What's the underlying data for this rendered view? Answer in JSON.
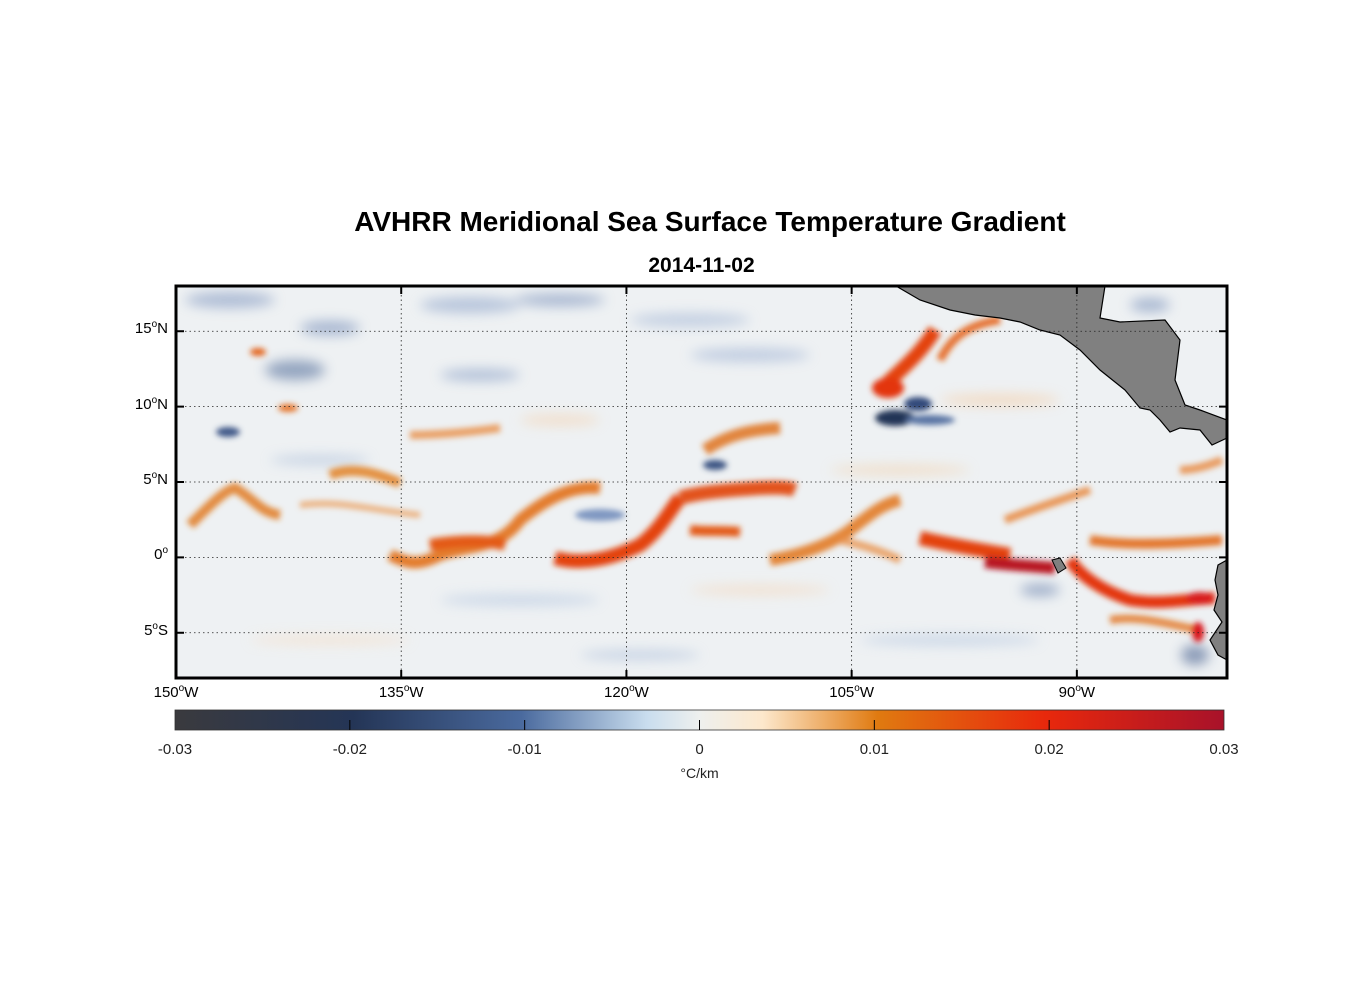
{
  "chart_data": {
    "type": "heatmap",
    "title": "AVHRR Meridional Sea Surface Temperature Gradient",
    "subtitle": "2014-11-02",
    "x_axis": {
      "range": [
        -150,
        -80
      ],
      "ticks": [
        -150,
        -135,
        -120,
        -105,
        -90
      ],
      "tick_labels": [
        "150",
        "135",
        "120",
        "105",
        "90"
      ],
      "suffix": "W"
    },
    "y_axis": {
      "range": [
        -8,
        18
      ],
      "ticks": [
        15,
        10,
        5,
        0,
        -5
      ],
      "tick_labels": [
        "15",
        "10",
        "5",
        "0",
        "5"
      ],
      "suffixes": [
        "N",
        "N",
        "N",
        "",
        "S"
      ]
    },
    "grid": true,
    "colorbar": {
      "range": [
        -0.03,
        0.03
      ],
      "tick_labels": [
        "-0.03",
        "-0.02",
        "-0.01",
        "0",
        "0.01",
        "0.02",
        "0.03"
      ],
      "units": "°C/km",
      "colors": [
        "#3a3a3e",
        "#243556",
        "#4a6a9e",
        "#c9ddee",
        "#eef0ee",
        "#fde8cc",
        "#e07a10",
        "#e8280c",
        "#a8122a"
      ]
    },
    "features": [
      {
        "lon_start": -149,
        "lon_end": -84,
        "lat_center_range": [
          0,
          4.5
        ],
        "value": 0.012,
        "description_text": ""
      },
      {
        "lon": -92,
        "lat": -0.5,
        "value": 0.028
      },
      {
        "lon": -103,
        "lat": 10,
        "value": -0.028
      },
      {
        "lon": -104,
        "lat": 11,
        "value": 0.02
      }
    ],
    "land_color": "#808080"
  }
}
